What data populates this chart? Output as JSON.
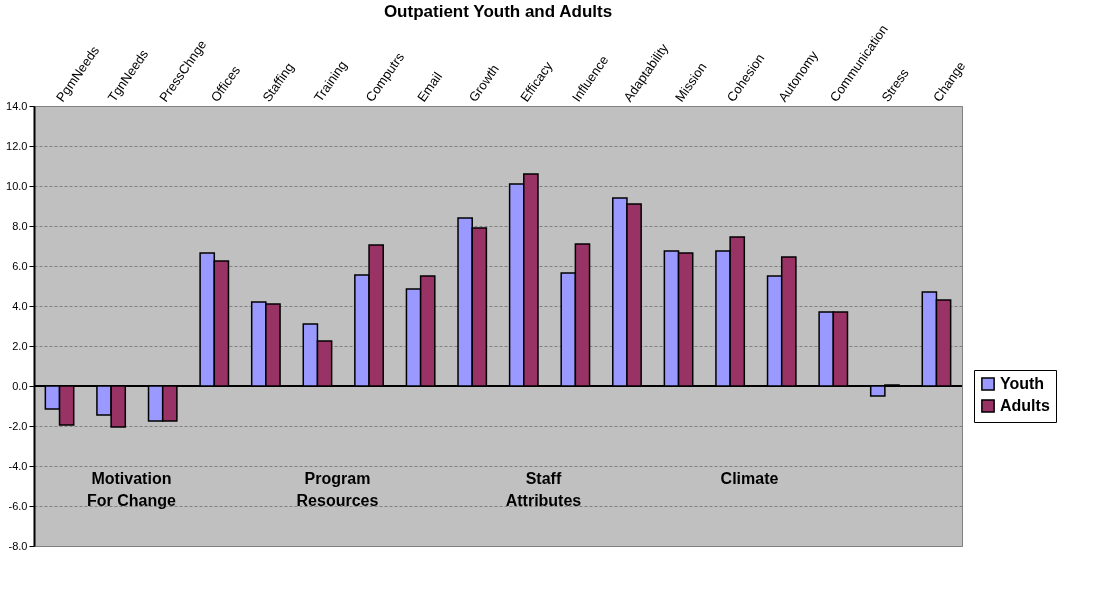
{
  "chart_data": {
    "type": "bar",
    "title": "Outpatient Youth and Adults",
    "categories": [
      "PgmNeeds",
      "TgnNeeds",
      "PressChnge",
      "Offices",
      "Staffing",
      "Training",
      "Computrs",
      "Email",
      "Growth",
      "Efficacy",
      "Influence",
      "Adaptability",
      "Mission",
      "Cohesion",
      "Autonomy",
      "Communication",
      "Stress",
      "Change"
    ],
    "series": [
      {
        "name": "Youth",
        "color": "#9999ff",
        "values": [
          -1.15,
          -1.45,
          -1.75,
          6.65,
          4.2,
          3.1,
          5.55,
          4.85,
          8.4,
          10.1,
          5.65,
          9.4,
          6.75,
          6.75,
          5.5,
          3.7,
          -0.5,
          4.7
        ]
      },
      {
        "name": "Adults",
        "color": "#993366",
        "values": [
          -1.95,
          -2.05,
          -1.75,
          6.25,
          4.1,
          2.25,
          7.05,
          5.5,
          7.9,
          10.6,
          7.1,
          9.1,
          6.65,
          7.45,
          6.45,
          3.7,
          0.05,
          4.3
        ]
      }
    ],
    "ylim": [
      -8,
      14
    ],
    "yticks": [
      {
        "value": -8,
        "label": "-8.0"
      },
      {
        "value": -6,
        "label": "-6.0"
      },
      {
        "value": -4,
        "label": "-4.0"
      },
      {
        "value": -2,
        "label": "-2.0"
      },
      {
        "value": 0,
        "label": "0.0"
      },
      {
        "value": 2,
        "label": "2.0"
      },
      {
        "value": 4,
        "label": "4.0"
      },
      {
        "value": 6,
        "label": "6.0"
      },
      {
        "value": 8,
        "label": "8.0"
      },
      {
        "value": 10,
        "label": "10.0"
      },
      {
        "value": 12,
        "label": "12.0"
      },
      {
        "value": 14,
        "label": "14.0"
      }
    ],
    "grid": "y",
    "legend": "right",
    "annotations": [
      "Motivation\nFor Change",
      "Program\nResources",
      "Staff\nAttributes",
      "Climate"
    ]
  }
}
